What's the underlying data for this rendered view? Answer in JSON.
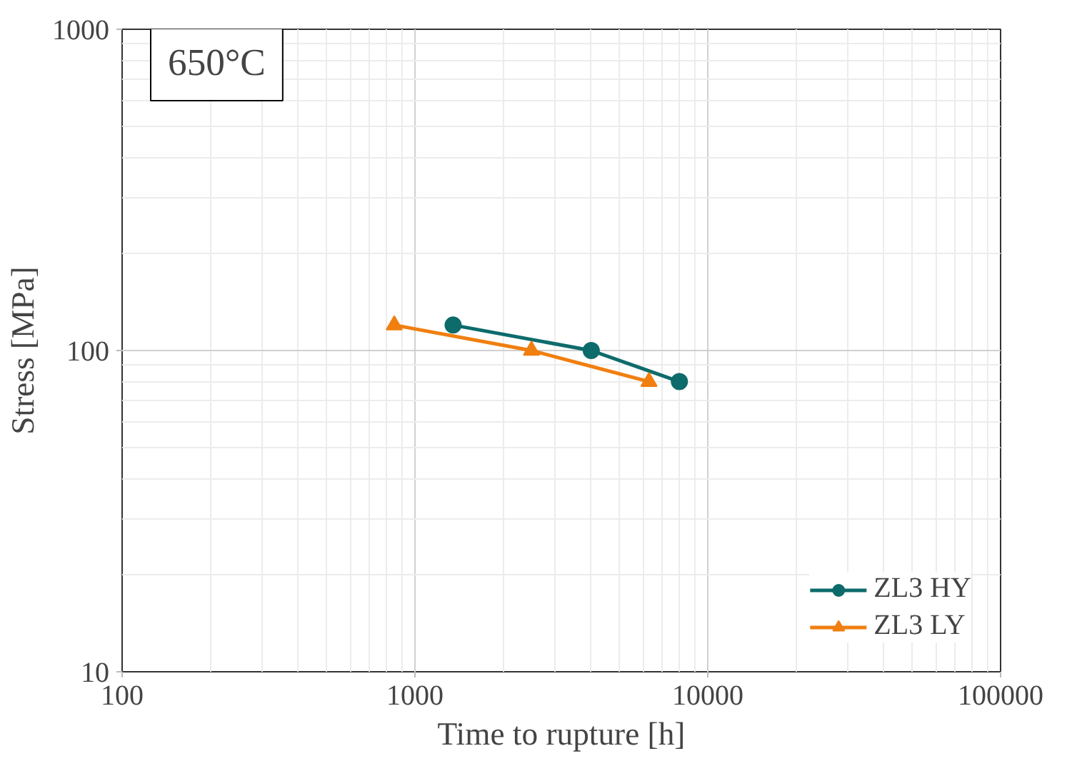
{
  "chart_data": {
    "type": "line",
    "xlabel": "Time to rupture [h]",
    "ylabel": "Stress [MPa]",
    "log": "xy",
    "grid": true,
    "legend": "bottom right",
    "annotations": [
      "650°C"
    ],
    "xlim": [
      100,
      100000
    ],
    "xticks": [
      100,
      1000,
      10000,
      100000
    ],
    "ylim": [
      10,
      1000
    ],
    "yticks": [
      10,
      100,
      1000
    ],
    "series": [
      {
        "name": "ZL3 HY",
        "color": "#0e6b6b",
        "marker": "circle",
        "x": [
          1350,
          4000,
          8000
        ],
        "values": [
          120,
          100,
          80
        ]
      },
      {
        "name": "ZL3 LY",
        "color": "#f07f10",
        "marker": "triangle",
        "x": [
          850,
          2500,
          6300
        ],
        "values": [
          120,
          100,
          80
        ]
      }
    ]
  }
}
